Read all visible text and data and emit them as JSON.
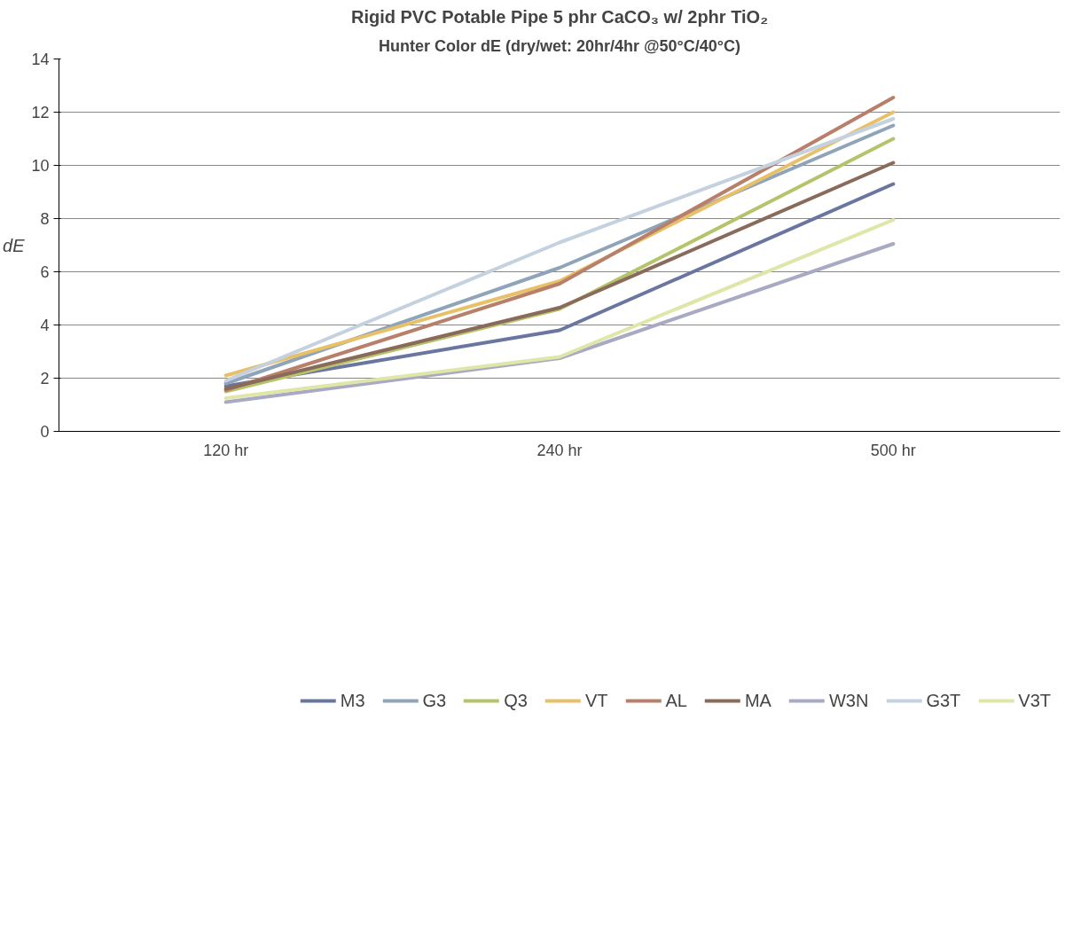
{
  "chart_data": {
    "type": "line",
    "title": "Rigid PVC Potable Pipe 5 phr CaCO₃ w/ 2phr TiO₂",
    "subtitle": "Hunter Color dE (dry/wet: 20hr/4hr @50°C/40°C)",
    "ylabel": "dE",
    "categories": [
      "120 hr",
      "240 hr",
      "500 hr"
    ],
    "ylim": [
      0,
      14
    ],
    "yticks": [
      0,
      2,
      4,
      6,
      8,
      10,
      12,
      14
    ],
    "grid": "y",
    "legend": "bottom",
    "marker": "none",
    "line_style": "solid",
    "series": [
      {
        "name": "M3",
        "color": "#6a76a0",
        "values": [
          1.7,
          3.8,
          9.3
        ]
      },
      {
        "name": "G3",
        "color": "#8fa4b8",
        "values": [
          1.8,
          6.15,
          11.5
        ]
      },
      {
        "name": "Q3",
        "color": "#b5c46a",
        "values": [
          1.5,
          4.6,
          11.0
        ]
      },
      {
        "name": "VT",
        "color": "#e8c068",
        "values": [
          2.1,
          5.65,
          12.0
        ]
      },
      {
        "name": "AL",
        "color": "#b8806a",
        "values": [
          1.55,
          5.55,
          12.55
        ]
      },
      {
        "name": "MA",
        "color": "#8a6a5a",
        "values": [
          1.6,
          4.65,
          10.1
        ]
      },
      {
        "name": "W3N",
        "color": "#a8aac4",
        "values": [
          1.1,
          2.75,
          7.05
        ]
      },
      {
        "name": "G3T",
        "color": "#c4d2e0",
        "values": [
          1.9,
          7.1,
          11.75
        ]
      },
      {
        "name": "V3T",
        "color": "#dfe6a8",
        "values": [
          1.25,
          2.8,
          7.95
        ]
      }
    ]
  }
}
